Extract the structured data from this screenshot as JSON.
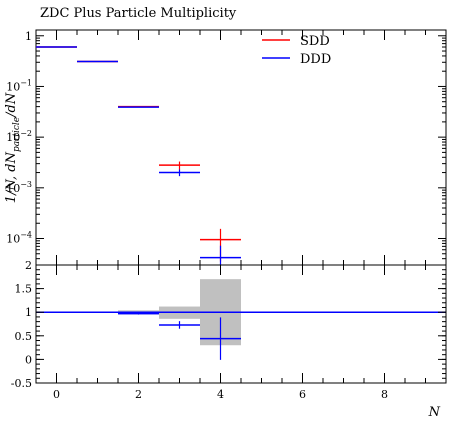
{
  "chart_data": [
    {
      "type": "line",
      "title": "ZDC Plus Particle Multiplicity",
      "ylabel": "1/N, dN_particle/dN",
      "yscale": "log",
      "ylim": [
        3e-05,
        1.3
      ],
      "xlim": [
        -0.5,
        9.5
      ],
      "legend_position": "top-right",
      "y_tick_labels": [
        "10^-4",
        "10^-3",
        "10^-2",
        "10^-1",
        "1"
      ],
      "series": [
        {
          "name": "SDD",
          "color": "#ff0000",
          "points": [
            {
              "x": 0,
              "xlo": -0.5,
              "xhi": 0.5,
              "y": 0.6,
              "err": 0.0
            },
            {
              "x": 1,
              "xlo": 0.5,
              "xhi": 1.5,
              "y": 0.31,
              "err": 0.0
            },
            {
              "x": 2,
              "xlo": 1.5,
              "xhi": 2.5,
              "y": 0.04,
              "err": 0.0
            },
            {
              "x": 3,
              "xlo": 2.5,
              "xhi": 3.5,
              "y": 0.0028,
              "err": 0.0005
            },
            {
              "x": 4,
              "xlo": 3.5,
              "xhi": 4.5,
              "y": 9.5e-05,
              "err": 6e-05
            }
          ]
        },
        {
          "name": "DDD",
          "color": "#0000ff",
          "points": [
            {
              "x": 0,
              "xlo": -0.5,
              "xhi": 0.5,
              "y": 0.6,
              "err": 0.0
            },
            {
              "x": 1,
              "xlo": 0.5,
              "xhi": 1.5,
              "y": 0.31,
              "err": 0.0
            },
            {
              "x": 2,
              "xlo": 1.5,
              "xhi": 2.5,
              "y": 0.039,
              "err": 0.0
            },
            {
              "x": 3,
              "xlo": 2.5,
              "xhi": 3.5,
              "y": 0.002,
              "err": 0.0003
            },
            {
              "x": 4,
              "xlo": 3.5,
              "xhi": 4.5,
              "y": 4.2e-05,
              "err": 3e-05
            }
          ]
        }
      ]
    },
    {
      "type": "line",
      "xlabel": "N",
      "ylim": [
        -0.5,
        2.0
      ],
      "xlim": [
        -0.5,
        9.5
      ],
      "x_ticks": [
        0,
        2,
        4,
        6,
        8
      ],
      "y_ticks": [
        -0.5,
        0,
        0.5,
        1,
        1.5,
        2
      ],
      "x_tick_labels": [
        "0",
        "2",
        "4",
        "6",
        "8"
      ],
      "y_tick_labels": [
        "-0.5",
        "0",
        "0.5",
        "1",
        "1.5",
        "2"
      ],
      "band": {
        "color": "#c0c0c0",
        "bins": [
          {
            "xlo": -0.5,
            "xhi": 0.5,
            "lo": 0.99,
            "hi": 1.01
          },
          {
            "xlo": 0.5,
            "xhi": 1.5,
            "lo": 0.99,
            "hi": 1.01
          },
          {
            "xlo": 1.5,
            "xhi": 2.5,
            "lo": 0.95,
            "hi": 1.04
          },
          {
            "xlo": 2.5,
            "xhi": 3.5,
            "lo": 0.86,
            "hi": 1.12
          },
          {
            "xlo": 3.5,
            "xhi": 4.5,
            "lo": 0.3,
            "hi": 1.7
          }
        ]
      },
      "reference_line": {
        "y": 1.0,
        "color": "#0000ff",
        "xlo": -0.5,
        "xhi": 9.5
      },
      "series": [
        {
          "name": "DDD",
          "color": "#0000ff",
          "points": [
            {
              "x": 0,
              "xlo": -0.5,
              "xhi": 0.5,
              "y": 1.0,
              "err": 0.0
            },
            {
              "x": 1,
              "xlo": 0.5,
              "xhi": 1.5,
              "y": 1.0,
              "err": 0.0
            },
            {
              "x": 2,
              "xlo": 1.5,
              "xhi": 2.5,
              "y": 0.97,
              "err": 0.02
            },
            {
              "x": 3,
              "xlo": 2.5,
              "xhi": 3.5,
              "y": 0.73,
              "err": 0.08
            },
            {
              "x": 4,
              "xlo": 3.5,
              "xhi": 4.5,
              "y": 0.44,
              "err": 0.45
            }
          ]
        }
      ]
    }
  ]
}
